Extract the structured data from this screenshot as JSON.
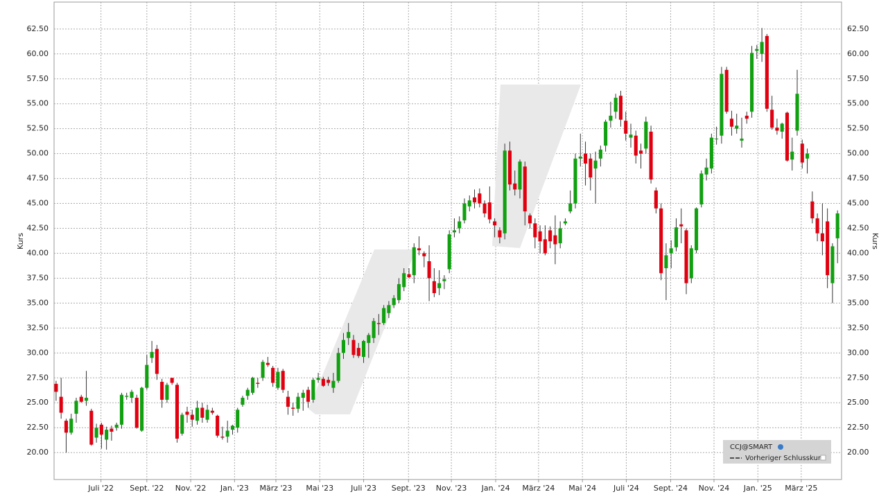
{
  "chart_data": {
    "type": "candlestick",
    "y_label": "Kurs",
    "series_name": "CCJ@SMART",
    "legend_items": [
      "CCJ@SMART",
      "Vorheriger Schlusskurs"
    ],
    "up_color": "#10a010",
    "down_color": "#e00010",
    "grid": true,
    "xlim": [
      -0.4,
      155.8
    ],
    "xticks": [
      {
        "value": 8.9,
        "label": "Juli '22"
      },
      {
        "value": 18.0,
        "label": "Sept. '22"
      },
      {
        "value": 26.7,
        "label": "Nov. '22"
      },
      {
        "value": 35.4,
        "label": "Jan. '23"
      },
      {
        "value": 43.6,
        "label": "März '23"
      },
      {
        "value": 52.3,
        "label": "Mai '23"
      },
      {
        "value": 61.0,
        "label": "Juli '23"
      },
      {
        "value": 69.9,
        "label": "Sept. '23"
      },
      {
        "value": 78.4,
        "label": "Nov. '23"
      },
      {
        "value": 87.2,
        "label": "Jan. '24"
      },
      {
        "value": 95.7,
        "label": "März '24"
      },
      {
        "value": 104.4,
        "label": "Mai '24"
      },
      {
        "value": 113.1,
        "label": "Juli '24"
      },
      {
        "value": 121.9,
        "label": "Sept. '24"
      },
      {
        "value": 130.5,
        "label": "Nov. '24"
      },
      {
        "value": 139.2,
        "label": "Jan. '25"
      },
      {
        "value": 147.8,
        "label": "März '25"
      }
    ],
    "ylim": [
      17.3,
      65.2
    ],
    "yticks": [
      {
        "value": 20,
        "label": "20.00"
      },
      {
        "value": 22.5,
        "label": "22.50"
      },
      {
        "value": 25,
        "label": "25.00"
      },
      {
        "value": 27.5,
        "label": "27.50"
      },
      {
        "value": 30,
        "label": "30.00"
      },
      {
        "value": 32.5,
        "label": "32.50"
      },
      {
        "value": 35,
        "label": "35.00"
      },
      {
        "value": 37.5,
        "label": "37.50"
      },
      {
        "value": 40,
        "label": "40.00"
      },
      {
        "value": 42.5,
        "label": "42.50"
      },
      {
        "value": 45,
        "label": "45.00"
      },
      {
        "value": 47.5,
        "label": "47.50"
      },
      {
        "value": 50,
        "label": "50.00"
      },
      {
        "value": 52.5,
        "label": "52.50"
      },
      {
        "value": 55,
        "label": "55.00"
      },
      {
        "value": 57.5,
        "label": "57.50"
      },
      {
        "value": 60,
        "label": "60.00"
      },
      {
        "value": 62.5,
        "label": "62.50"
      }
    ],
    "candles": [
      [
        26.9,
        27.2,
        25.2,
        26.1
      ],
      [
        25.6,
        27.5,
        23.4,
        24.0
      ],
      [
        23.2,
        23.4,
        20.0,
        22.0
      ],
      [
        22.0,
        23.9,
        21.8,
        23.4
      ],
      [
        23.9,
        25.5,
        23.0,
        25.2
      ],
      [
        25.6,
        25.8,
        25.0,
        25.1
      ],
      [
        25.2,
        28.2,
        24.7,
        25.5
      ],
      [
        24.2,
        24.4,
        20.7,
        20.8
      ],
      [
        21.5,
        22.9,
        21.0,
        22.5
      ],
      [
        22.8,
        23.0,
        20.4,
        21.8
      ],
      [
        21.3,
        22.6,
        20.3,
        22.3
      ],
      [
        22.4,
        22.7,
        21.2,
        22.1
      ],
      [
        22.5,
        23.0,
        22.2,
        22.8
      ],
      [
        22.8,
        26.0,
        22.4,
        25.8
      ],
      [
        25.6,
        26.0,
        25.3,
        25.7
      ],
      [
        25.5,
        26.3,
        25.0,
        26.1
      ],
      [
        25.5,
        25.8,
        22.4,
        22.5
      ],
      [
        22.2,
        26.6,
        22.1,
        26.5
      ],
      [
        26.5,
        29.8,
        26.3,
        28.8
      ],
      [
        29.5,
        31.2,
        29.0,
        30.1
      ],
      [
        30.4,
        30.8,
        27.3,
        27.9
      ],
      [
        27.1,
        27.4,
        24.5,
        25.3
      ],
      [
        25.3,
        27.0,
        25.0,
        26.8
      ],
      [
        27.5,
        27.5,
        26.8,
        27.0
      ],
      [
        26.8,
        27.0,
        21.0,
        21.4
      ],
      [
        21.9,
        24.0,
        21.7,
        23.8
      ],
      [
        24.1,
        24.6,
        23.0,
        23.8
      ],
      [
        23.8,
        24.3,
        22.6,
        23.3
      ],
      [
        23.2,
        25.2,
        22.8,
        24.5
      ],
      [
        24.5,
        25.0,
        23.0,
        23.5
      ],
      [
        23.3,
        24.8,
        23.0,
        24.3
      ],
      [
        24.2,
        24.5,
        23.8,
        24.0
      ],
      [
        23.7,
        23.8,
        21.5,
        21.7
      ],
      [
        21.6,
        22.6,
        21.3,
        21.5
      ],
      [
        21.6,
        23.2,
        21.0,
        22.2
      ],
      [
        22.3,
        22.8,
        21.8,
        22.7
      ],
      [
        22.5,
        24.5,
        22.0,
        24.3
      ],
      [
        24.8,
        25.7,
        24.6,
        25.5
      ],
      [
        25.7,
        26.5,
        25.3,
        26.3
      ],
      [
        26.0,
        27.6,
        25.8,
        27.5
      ],
      [
        27.0,
        27.5,
        26.5,
        26.9
      ],
      [
        27.5,
        29.3,
        27.2,
        29.1
      ],
      [
        29.0,
        29.6,
        28.6,
        28.8
      ],
      [
        28.5,
        28.7,
        26.6,
        27.0
      ],
      [
        26.5,
        28.5,
        26.3,
        28.1
      ],
      [
        28.2,
        28.4,
        26.0,
        26.3
      ],
      [
        25.6,
        26.2,
        23.8,
        24.6
      ],
      [
        24.5,
        25.0,
        23.7,
        24.4
      ],
      [
        24.4,
        26.0,
        24.0,
        25.6
      ],
      [
        25.5,
        26.3,
        24.2,
        26.0
      ],
      [
        26.3,
        26.6,
        24.5,
        25.1
      ],
      [
        25.3,
        27.5,
        25.0,
        27.3
      ],
      [
        27.3,
        28.0,
        27.0,
        27.5
      ],
      [
        27.4,
        27.6,
        26.6,
        26.7
      ],
      [
        27.3,
        27.6,
        26.7,
        27.0
      ],
      [
        26.5,
        28.0,
        26.0,
        27.2
      ],
      [
        27.2,
        30.5,
        27.0,
        30.0
      ],
      [
        30.0,
        32.0,
        29.4,
        31.3
      ],
      [
        31.5,
        33.0,
        30.8,
        32.1
      ],
      [
        31.3,
        31.8,
        29.5,
        29.8
      ],
      [
        30.5,
        31.0,
        29.5,
        29.7
      ],
      [
        29.6,
        31.3,
        29.0,
        31.2
      ],
      [
        31.0,
        32.0,
        29.5,
        31.8
      ],
      [
        31.5,
        33.5,
        31.0,
        33.2
      ],
      [
        33.0,
        33.9,
        31.8,
        32.9
      ],
      [
        33.0,
        34.8,
        32.8,
        34.5
      ],
      [
        34.0,
        35.2,
        33.5,
        34.8
      ],
      [
        34.8,
        35.8,
        34.5,
        35.5
      ],
      [
        35.3,
        37.5,
        35.0,
        36.9
      ],
      [
        36.6,
        38.5,
        36.2,
        38.0
      ],
      [
        37.9,
        38.5,
        37.5,
        37.6
      ],
      [
        37.8,
        41.0,
        37.0,
        40.6
      ],
      [
        40.5,
        41.7,
        39.8,
        40.3
      ],
      [
        40.0,
        40.2,
        38.6,
        39.7
      ],
      [
        39.2,
        40.8,
        35.2,
        37.5
      ],
      [
        37.2,
        38.5,
        35.6,
        36.0
      ],
      [
        36.5,
        38.3,
        35.8,
        37.0
      ],
      [
        37.2,
        37.8,
        36.4,
        37.4
      ],
      [
        38.4,
        42.3,
        38.0,
        41.9
      ],
      [
        42.1,
        43.5,
        41.6,
        42.3
      ],
      [
        42.5,
        43.7,
        42.0,
        43.2
      ],
      [
        43.3,
        45.5,
        43.0,
        45.0
      ],
      [
        44.7,
        45.8,
        44.2,
        45.3
      ],
      [
        45.6,
        46.4,
        44.5,
        45.1
      ],
      [
        46.0,
        46.5,
        44.6,
        45.0
      ],
      [
        45.0,
        45.3,
        43.6,
        44.0
      ],
      [
        45.1,
        46.7,
        43.0,
        43.4
      ],
      [
        43.2,
        43.5,
        41.6,
        42.8
      ],
      [
        42.3,
        42.6,
        41.0,
        41.6
      ],
      [
        42.0,
        51.0,
        41.4,
        50.3
      ],
      [
        50.3,
        51.2,
        46.3,
        46.9
      ],
      [
        47.0,
        48.3,
        45.8,
        46.4
      ],
      [
        46.4,
        49.4,
        45.5,
        49.2
      ],
      [
        48.7,
        49.2,
        42.8,
        44.2
      ],
      [
        43.8,
        44.0,
        42.5,
        43.0
      ],
      [
        43.0,
        43.5,
        40.5,
        41.6
      ],
      [
        42.2,
        42.8,
        40.0,
        41.2
      ],
      [
        41.4,
        42.8,
        39.8,
        40.0
      ],
      [
        42.3,
        42.7,
        40.5,
        41.2
      ],
      [
        41.8,
        43.8,
        38.9,
        40.9
      ],
      [
        41.0,
        43.2,
        40.5,
        42.5
      ],
      [
        43.0,
        43.5,
        42.8,
        43.2
      ],
      [
        44.2,
        46.3,
        44.0,
        45.0
      ],
      [
        45.0,
        50.0,
        44.5,
        49.5
      ],
      [
        49.5,
        52.0,
        48.7,
        49.7
      ],
      [
        50.0,
        51.2,
        46.8,
        49.0
      ],
      [
        49.5,
        50.0,
        46.3,
        47.6
      ],
      [
        48.5,
        50.2,
        45.0,
        49.3
      ],
      [
        49.5,
        50.8,
        48.7,
        50.4
      ],
      [
        50.8,
        53.4,
        50.2,
        53.2
      ],
      [
        53.3,
        55.2,
        52.6,
        53.8
      ],
      [
        54.2,
        56.0,
        53.5,
        55.6
      ],
      [
        55.8,
        56.3,
        52.7,
        53.4
      ],
      [
        53.3,
        54.2,
        51.3,
        52.0
      ],
      [
        51.6,
        53.0,
        50.6,
        51.9
      ],
      [
        51.8,
        52.3,
        49.0,
        49.8
      ],
      [
        50.3,
        51.0,
        48.5,
        50.0
      ],
      [
        50.5,
        53.7,
        50.0,
        53.2
      ],
      [
        52.2,
        52.8,
        47.0,
        47.4
      ],
      [
        46.3,
        46.6,
        44.0,
        44.5
      ],
      [
        44.5,
        45.0,
        37.3,
        38.0
      ],
      [
        38.5,
        41.0,
        35.3,
        39.8
      ],
      [
        40.0,
        41.3,
        38.5,
        40.5
      ],
      [
        40.6,
        43.5,
        40.2,
        42.6
      ],
      [
        42.9,
        44.5,
        41.0,
        42.7
      ],
      [
        42.3,
        42.5,
        35.9,
        37.0
      ],
      [
        37.5,
        40.8,
        37.0,
        40.5
      ],
      [
        40.3,
        44.6,
        40.0,
        44.5
      ],
      [
        44.9,
        48.3,
        44.6,
        48.0
      ],
      [
        47.9,
        49.5,
        47.3,
        48.6
      ],
      [
        48.5,
        52.0,
        48.0,
        51.6
      ],
      [
        51.5,
        52.7,
        50.9,
        51.5
      ],
      [
        51.8,
        58.7,
        51.0,
        58.0
      ],
      [
        58.4,
        58.7,
        54.0,
        54.2
      ],
      [
        53.5,
        54.3,
        51.8,
        52.7
      ],
      [
        52.5,
        54.0,
        52.0,
        52.8
      ],
      [
        51.3,
        53.6,
        50.6,
        51.5
      ],
      [
        53.8,
        54.2,
        53.0,
        53.5
      ],
      [
        54.2,
        60.8,
        53.6,
        60.1
      ],
      [
        60.3,
        60.9,
        59.5,
        60.5
      ],
      [
        60.0,
        62.6,
        59.2,
        61.2
      ],
      [
        61.8,
        62.0,
        54.2,
        54.5
      ],
      [
        54.4,
        55.8,
        52.4,
        52.6
      ],
      [
        52.6,
        53.5,
        51.9,
        52.3
      ],
      [
        52.2,
        53.1,
        51.5,
        53.0
      ],
      [
        54.1,
        54.2,
        49.2,
        49.3
      ],
      [
        49.4,
        51.6,
        48.3,
        50.2
      ],
      [
        52.3,
        58.4,
        51.8,
        56.0
      ],
      [
        51.0,
        51.4,
        48.5,
        49.1
      ],
      [
        49.5,
        50.5,
        48.0,
        50.0
      ],
      [
        45.2,
        46.2,
        43.0,
        43.5
      ],
      [
        43.5,
        44.0,
        41.2,
        42.0
      ],
      [
        42.0,
        45.0,
        39.8,
        41.2
      ],
      [
        43.2,
        44.5,
        36.5,
        37.8
      ],
      [
        37.0,
        41.0,
        35.0,
        40.7
      ],
      [
        41.5,
        44.3,
        39.0,
        44.0
      ]
    ]
  }
}
